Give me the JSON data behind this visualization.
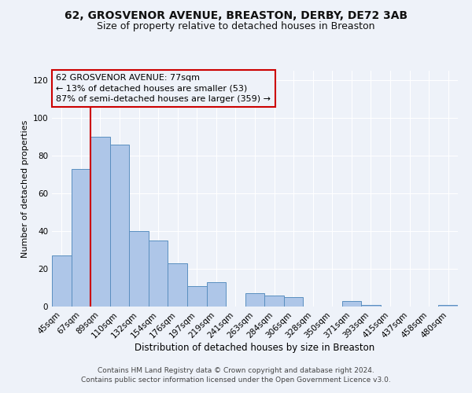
{
  "title1": "62, GROSVENOR AVENUE, BREASTON, DERBY, DE72 3AB",
  "title2": "Size of property relative to detached houses in Breaston",
  "xlabel": "Distribution of detached houses by size in Breaston",
  "ylabel": "Number of detached properties",
  "bins": [
    "45sqm",
    "67sqm",
    "89sqm",
    "110sqm",
    "132sqm",
    "154sqm",
    "176sqm",
    "197sqm",
    "219sqm",
    "241sqm",
    "263sqm",
    "284sqm",
    "306sqm",
    "328sqm",
    "350sqm",
    "371sqm",
    "393sqm",
    "415sqm",
    "437sqm",
    "458sqm",
    "480sqm"
  ],
  "values": [
    27,
    73,
    90,
    86,
    40,
    35,
    23,
    11,
    13,
    0,
    7,
    6,
    5,
    0,
    0,
    3,
    1,
    0,
    0,
    0,
    1
  ],
  "bar_color": "#aec6e8",
  "bar_edge_color": "#5a8fc0",
  "vline_x": 1.5,
  "vline_color": "#cc0000",
  "annotation_line1": "62 GROSVENOR AVENUE: 77sqm",
  "annotation_line2": "← 13% of detached houses are smaller (53)",
  "annotation_line3": "87% of semi-detached houses are larger (359) →",
  "annotation_box_color": "#cc0000",
  "ylim": [
    0,
    125
  ],
  "yticks": [
    0,
    20,
    40,
    60,
    80,
    100,
    120
  ],
  "footer1": "Contains HM Land Registry data © Crown copyright and database right 2024.",
  "footer2": "Contains public sector information licensed under the Open Government Licence v3.0.",
  "bg_color": "#eef2f9",
  "title1_fontsize": 10,
  "title2_fontsize": 9,
  "xlabel_fontsize": 8.5,
  "ylabel_fontsize": 8,
  "tick_fontsize": 7.5,
  "annotation_fontsize": 8,
  "footer_fontsize": 6.5
}
